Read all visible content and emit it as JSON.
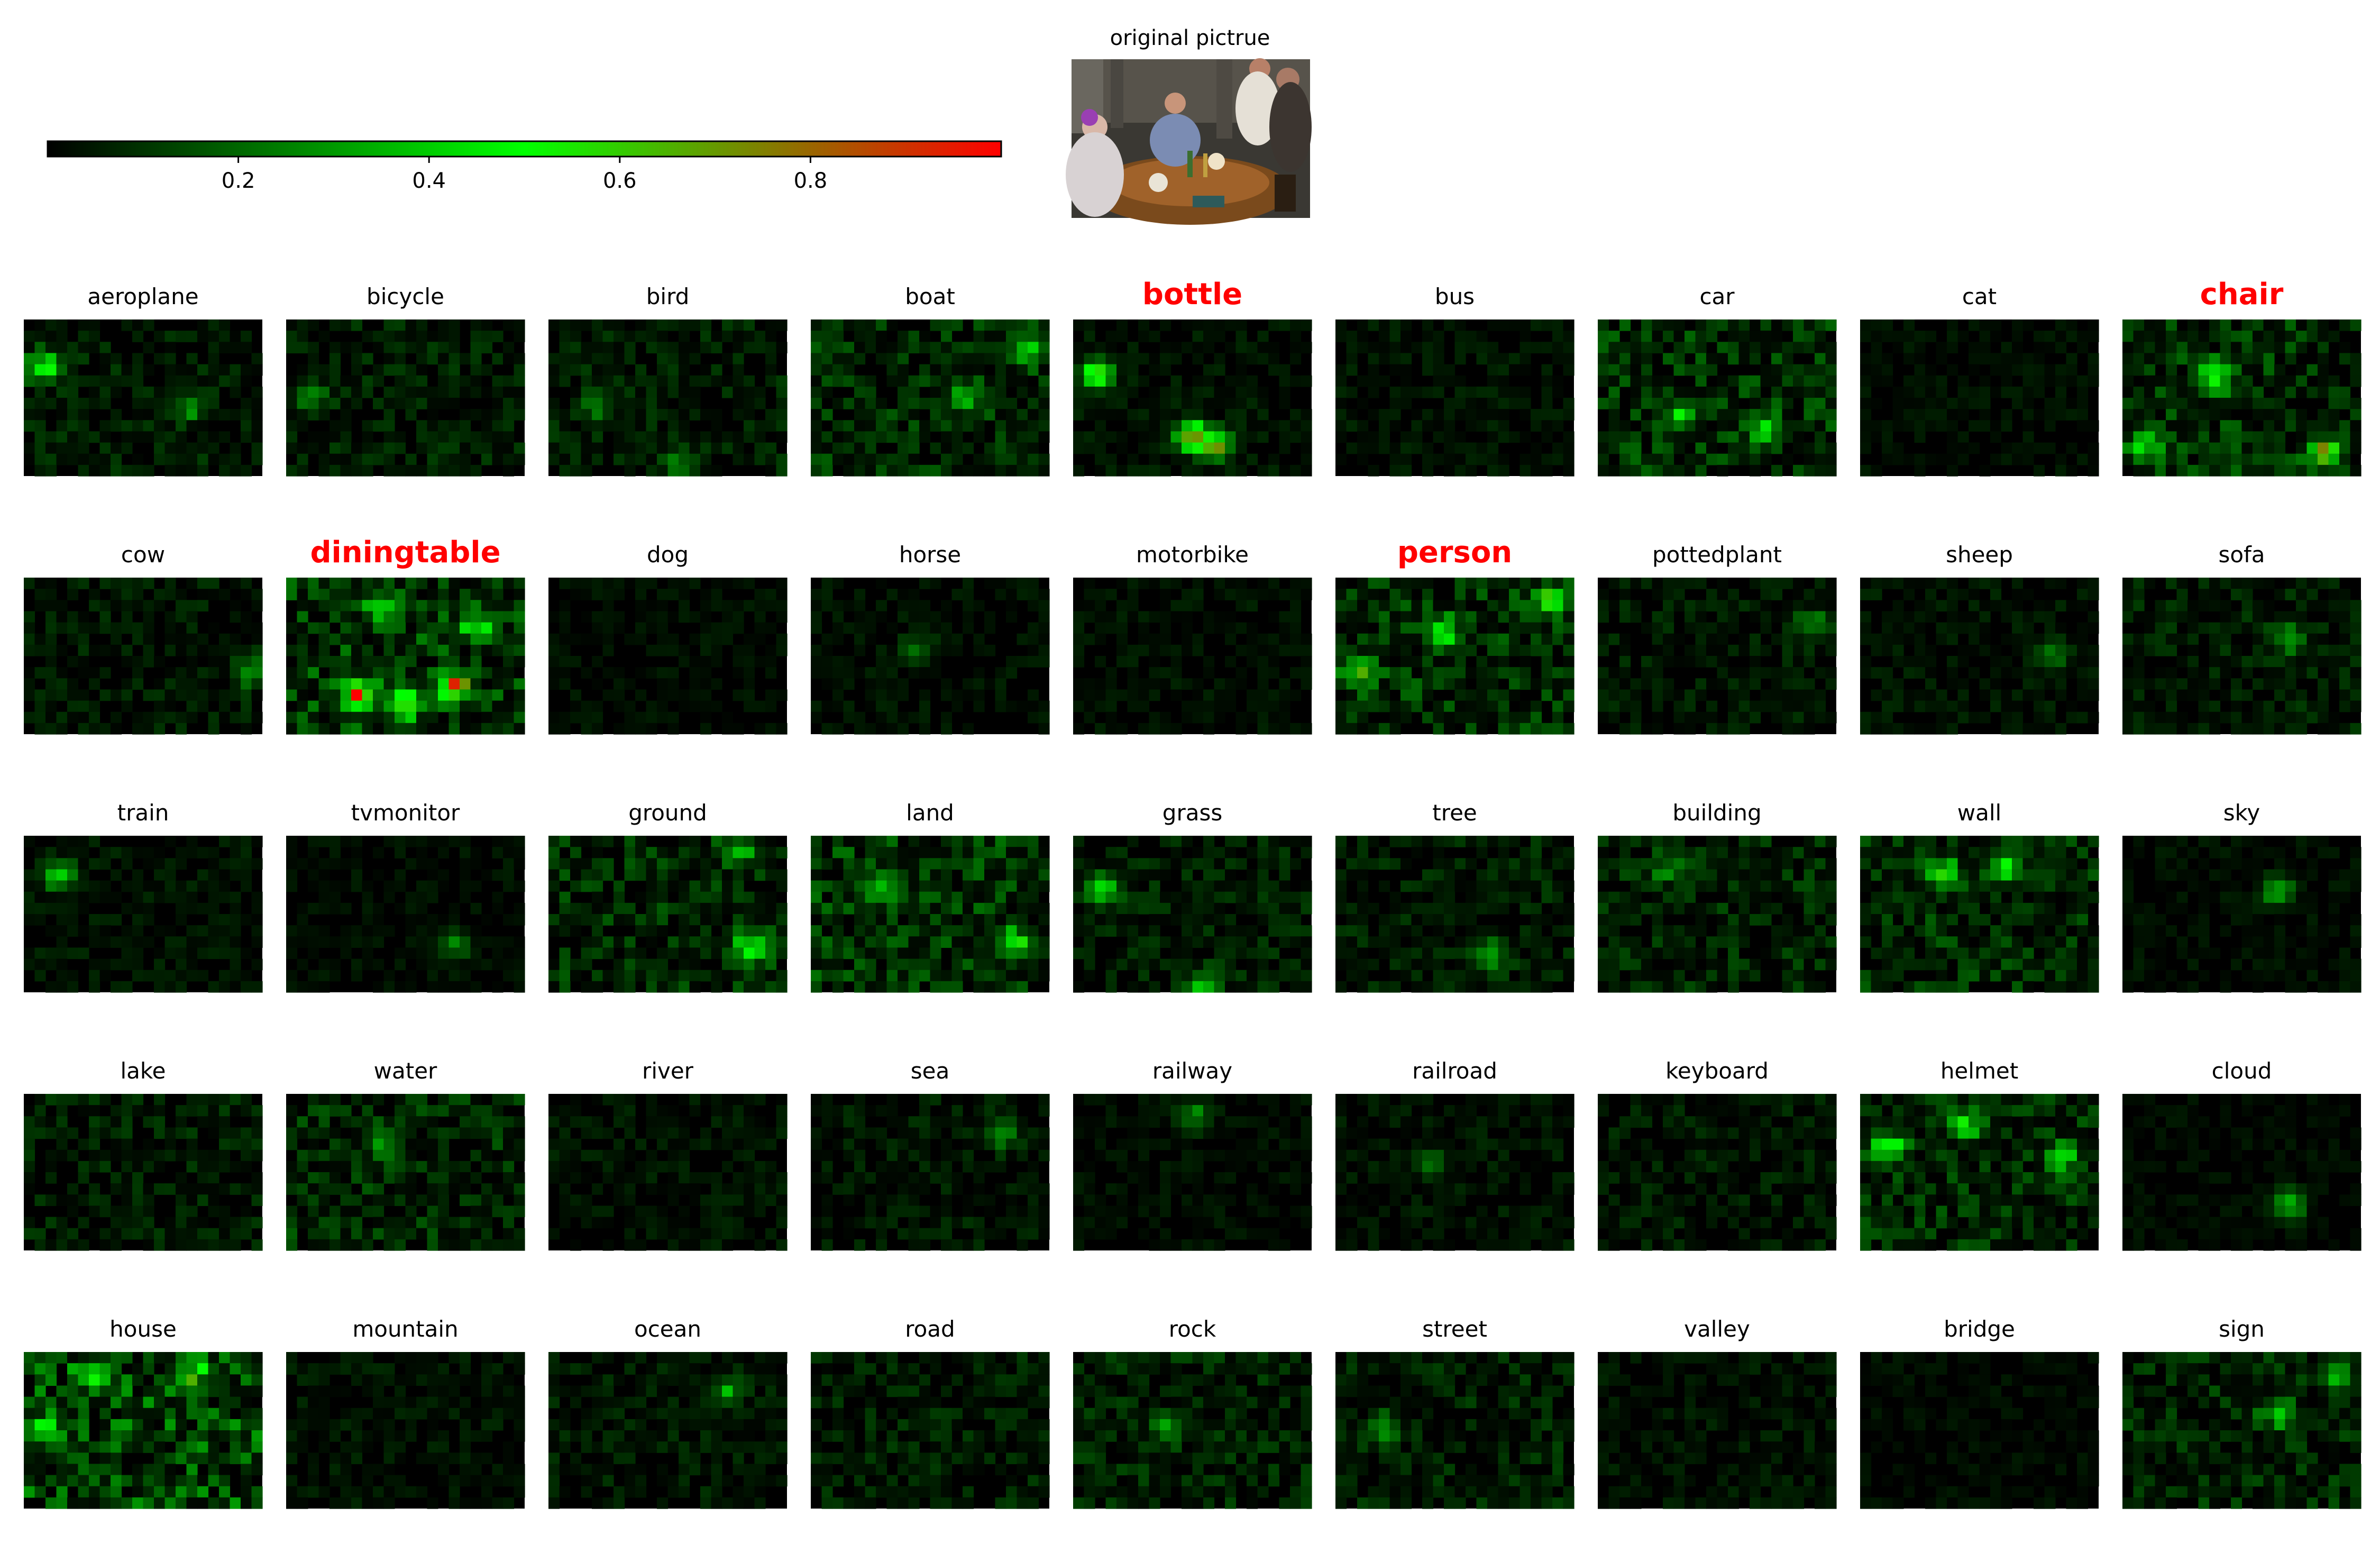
{
  "original": {
    "title": "original pictrue"
  },
  "colorbar": {
    "ticks": [
      "0.2",
      "0.4",
      "0.6",
      "0.8"
    ],
    "tick_values": [
      0.2,
      0.4,
      0.6,
      0.8
    ],
    "range": [
      0,
      1
    ],
    "colors": [
      "#000000",
      "#00ff00",
      "#ff0000"
    ]
  },
  "chart_data": {
    "type": "heatmap",
    "grid": {
      "rows": 5,
      "cols": 9
    },
    "highlight_color": "#ff0000",
    "panels": [
      {
        "label": "aeroplane",
        "highlight": false,
        "intensity": 0.12,
        "spots": [
          [
            0.08,
            0.3,
            0.6
          ],
          [
            0.7,
            0.55,
            0.3
          ]
        ]
      },
      {
        "label": "bicycle",
        "highlight": false,
        "intensity": 0.12,
        "spots": [
          [
            0.1,
            0.5,
            0.3
          ]
        ]
      },
      {
        "label": "bird",
        "highlight": false,
        "intensity": 0.12,
        "spots": [
          [
            0.2,
            0.55,
            0.3
          ],
          [
            0.55,
            0.9,
            0.3
          ]
        ]
      },
      {
        "label": "boat",
        "highlight": false,
        "intensity": 0.18,
        "spots": [
          [
            0.65,
            0.5,
            0.4
          ],
          [
            0.9,
            0.2,
            0.4
          ]
        ]
      },
      {
        "label": "bottle",
        "highlight": true,
        "intensity": 0.08,
        "spots": [
          [
            0.1,
            0.35,
            0.75
          ],
          [
            0.5,
            0.75,
            0.9
          ],
          [
            0.6,
            0.8,
            0.8
          ]
        ]
      },
      {
        "label": "bus",
        "highlight": false,
        "intensity": 0.08,
        "spots": []
      },
      {
        "label": "car",
        "highlight": false,
        "intensity": 0.2,
        "spots": [
          [
            0.35,
            0.6,
            0.4
          ],
          [
            0.7,
            0.7,
            0.4
          ]
        ]
      },
      {
        "label": "cat",
        "highlight": false,
        "intensity": 0.06,
        "spots": []
      },
      {
        "label": "chair",
        "highlight": true,
        "intensity": 0.2,
        "spots": [
          [
            0.4,
            0.35,
            0.6
          ],
          [
            0.85,
            0.85,
            0.85
          ],
          [
            0.1,
            0.8,
            0.55
          ]
        ]
      },
      {
        "label": "cow",
        "highlight": false,
        "intensity": 0.1,
        "spots": [
          [
            0.95,
            0.6,
            0.3
          ]
        ]
      },
      {
        "label": "diningtable",
        "highlight": true,
        "intensity": 0.25,
        "spots": [
          [
            0.5,
            0.8,
            0.98
          ],
          [
            0.3,
            0.75,
            0.98
          ],
          [
            0.7,
            0.7,
            0.98
          ],
          [
            0.4,
            0.2,
            0.5
          ],
          [
            0.8,
            0.3,
            0.5
          ]
        ]
      },
      {
        "label": "dog",
        "highlight": false,
        "intensity": 0.06,
        "spots": []
      },
      {
        "label": "horse",
        "highlight": false,
        "intensity": 0.07,
        "spots": [
          [
            0.45,
            0.45,
            0.2
          ]
        ]
      },
      {
        "label": "motorbike",
        "highlight": false,
        "intensity": 0.07,
        "spots": []
      },
      {
        "label": "person",
        "highlight": true,
        "intensity": 0.2,
        "spots": [
          [
            0.1,
            0.6,
            0.6
          ],
          [
            0.45,
            0.35,
            0.6
          ],
          [
            0.9,
            0.15,
            0.65
          ]
        ]
      },
      {
        "label": "pottedplant",
        "highlight": false,
        "intensity": 0.1,
        "spots": [
          [
            0.9,
            0.3,
            0.3
          ]
        ]
      },
      {
        "label": "sheep",
        "highlight": false,
        "intensity": 0.08,
        "spots": [
          [
            0.8,
            0.5,
            0.3
          ]
        ]
      },
      {
        "label": "sofa",
        "highlight": false,
        "intensity": 0.12,
        "spots": [
          [
            0.7,
            0.4,
            0.35
          ]
        ]
      },
      {
        "label": "train",
        "highlight": false,
        "intensity": 0.08,
        "spots": [
          [
            0.15,
            0.25,
            0.5
          ]
        ]
      },
      {
        "label": "tvmonitor",
        "highlight": false,
        "intensity": 0.06,
        "spots": [
          [
            0.7,
            0.7,
            0.3
          ]
        ]
      },
      {
        "label": "ground",
        "highlight": false,
        "intensity": 0.18,
        "spots": [
          [
            0.85,
            0.7,
            0.6
          ],
          [
            0.8,
            0.1,
            0.4
          ]
        ]
      },
      {
        "label": "land",
        "highlight": false,
        "intensity": 0.22,
        "spots": [
          [
            0.85,
            0.7,
            0.55
          ],
          [
            0.3,
            0.3,
            0.4
          ]
        ]
      },
      {
        "label": "grass",
        "highlight": false,
        "intensity": 0.12,
        "spots": [
          [
            0.12,
            0.35,
            0.6
          ],
          [
            0.55,
            0.95,
            0.5
          ]
        ]
      },
      {
        "label": "tree",
        "highlight": false,
        "intensity": 0.12,
        "spots": [
          [
            0.65,
            0.75,
            0.45
          ]
        ]
      },
      {
        "label": "building",
        "highlight": false,
        "intensity": 0.15,
        "spots": [
          [
            0.3,
            0.2,
            0.3
          ]
        ]
      },
      {
        "label": "wall",
        "highlight": false,
        "intensity": 0.18,
        "spots": [
          [
            0.35,
            0.25,
            0.6
          ],
          [
            0.6,
            0.2,
            0.55
          ]
        ]
      },
      {
        "label": "sky",
        "highlight": false,
        "intensity": 0.06,
        "spots": [
          [
            0.65,
            0.35,
            0.45
          ]
        ]
      },
      {
        "label": "lake",
        "highlight": false,
        "intensity": 0.12,
        "spots": []
      },
      {
        "label": "water",
        "highlight": false,
        "intensity": 0.18,
        "spots": [
          [
            0.4,
            0.3,
            0.3
          ]
        ]
      },
      {
        "label": "river",
        "highlight": false,
        "intensity": 0.08,
        "spots": []
      },
      {
        "label": "sea",
        "highlight": false,
        "intensity": 0.1,
        "spots": [
          [
            0.8,
            0.25,
            0.3
          ]
        ]
      },
      {
        "label": "railway",
        "highlight": false,
        "intensity": 0.06,
        "spots": [
          [
            0.5,
            0.15,
            0.35
          ]
        ]
      },
      {
        "label": "railroad",
        "highlight": false,
        "intensity": 0.08,
        "spots": [
          [
            0.4,
            0.45,
            0.25
          ]
        ]
      },
      {
        "label": "keyboard",
        "highlight": false,
        "intensity": 0.1,
        "spots": []
      },
      {
        "label": "helmet",
        "highlight": false,
        "intensity": 0.18,
        "spots": [
          [
            0.12,
            0.35,
            0.55
          ],
          [
            0.45,
            0.2,
            0.5
          ],
          [
            0.85,
            0.4,
            0.5
          ]
        ]
      },
      {
        "label": "cloud",
        "highlight": false,
        "intensity": 0.05,
        "spots": [
          [
            0.7,
            0.7,
            0.45
          ]
        ]
      },
      {
        "label": "house",
        "highlight": false,
        "intensity": 0.3,
        "spots": [
          [
            0.3,
            0.15,
            0.6
          ],
          [
            0.7,
            0.15,
            0.55
          ],
          [
            0.1,
            0.5,
            0.45
          ]
        ]
      },
      {
        "label": "mountain",
        "highlight": false,
        "intensity": 0.08,
        "spots": []
      },
      {
        "label": "ocean",
        "highlight": false,
        "intensity": 0.1,
        "spots": [
          [
            0.75,
            0.25,
            0.3
          ]
        ]
      },
      {
        "label": "road",
        "highlight": false,
        "intensity": 0.12,
        "spots": []
      },
      {
        "label": "rock",
        "highlight": false,
        "intensity": 0.14,
        "spots": [
          [
            0.4,
            0.5,
            0.3
          ]
        ]
      },
      {
        "label": "street",
        "highlight": false,
        "intensity": 0.13,
        "spots": [
          [
            0.2,
            0.5,
            0.35
          ]
        ]
      },
      {
        "label": "valley",
        "highlight": false,
        "intensity": 0.08,
        "spots": []
      },
      {
        "label": "bridge",
        "highlight": false,
        "intensity": 0.05,
        "spots": []
      },
      {
        "label": "sign",
        "highlight": false,
        "intensity": 0.16,
        "spots": [
          [
            0.65,
            0.4,
            0.4
          ],
          [
            0.9,
            0.15,
            0.4
          ]
        ]
      }
    ]
  }
}
